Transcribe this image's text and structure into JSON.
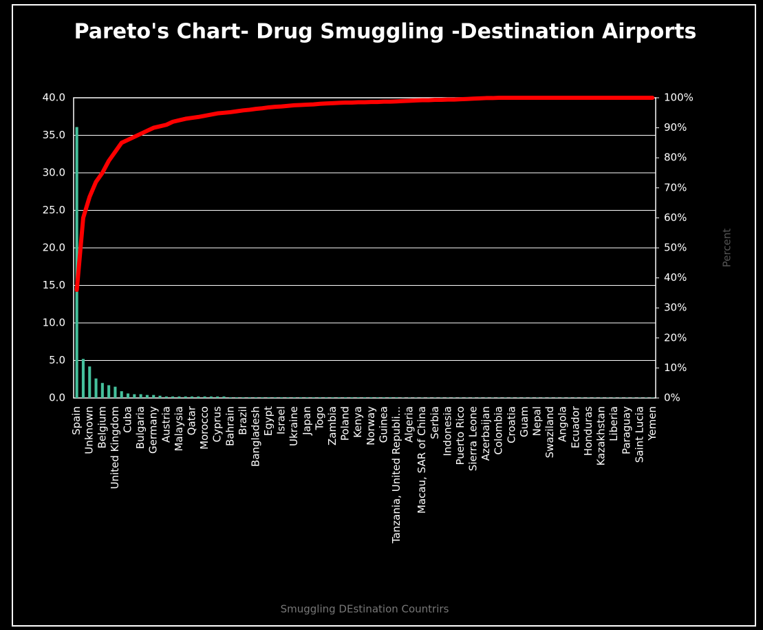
{
  "chart_data": {
    "type": "pareto",
    "title": "Pareto's Chart- Drug Smuggling -Destination Airports",
    "x_label": "Smuggling DEstination Countrirs",
    "y2_label": "Percent",
    "categories": [
      "Spain",
      null,
      "Unknown",
      null,
      "Belgium",
      null,
      "United Kingdom",
      null,
      "Cuba",
      null,
      "Bulgaria",
      null,
      "Germany",
      null,
      "Austria",
      null,
      "Malaysia",
      null,
      "Qatar",
      null,
      "Morocco",
      null,
      "Cyprus",
      null,
      "Bahrain",
      null,
      "Brazil",
      null,
      "Bangladesh",
      null,
      "Egypt",
      null,
      "Israel",
      null,
      "Ukraine",
      null,
      "Japan",
      null,
      "Togo",
      null,
      "Zambia",
      null,
      "Poland",
      null,
      "Kenya",
      null,
      "Norway",
      null,
      "Guinea",
      null,
      "Tanzania, United Republi...",
      null,
      "Algeria",
      null,
      "Macau, SAR of China",
      null,
      "Serbia",
      null,
      "Indonesia",
      null,
      "Puerto Rico",
      null,
      "Sierra Leone",
      null,
      "Azerbaijan",
      null,
      "Colombia",
      null,
      "Croatia",
      null,
      "Guam",
      null,
      "Nepal",
      null,
      "Swaziland",
      null,
      "Angola",
      null,
      "Ecuador",
      null,
      "Honduras",
      null,
      "Kazakhstan",
      null,
      "Liberia",
      null,
      "Paraguay",
      null,
      "Saint Lucia",
      null,
      "Yemen"
    ],
    "series": [
      {
        "type": "bar",
        "color": "#45c09c",
        "values": [
          36.1,
          5.2,
          4.2,
          2.6,
          2.0,
          1.7,
          1.5,
          0.9,
          0.6,
          0.5,
          0.5,
          0.4,
          0.4,
          0.3,
          0.2,
          0.2,
          0.2,
          0.2,
          0.2,
          0.2,
          0.2,
          0.2,
          0.2,
          0.2,
          0.1,
          0.1,
          0.1,
          0.1,
          0.1,
          0.1,
          0.1,
          0.1,
          0.1,
          0.1,
          0.1,
          0.1,
          0.1,
          0.1,
          0.1,
          0.1,
          0.1,
          0.1,
          0.1,
          0.1,
          0.1,
          0.1,
          0.1,
          0.1,
          0.1,
          0.1,
          0.1,
          0.05,
          0.05,
          0.05,
          0.05,
          0.05,
          0.05,
          0.05,
          0.05,
          0.05,
          0.05,
          0.05,
          0.05,
          0.05,
          0.05,
          0.05,
          0.05,
          0.05,
          0.05,
          0.05,
          0.05,
          0.05,
          0.05,
          0.05,
          0.05,
          0.05,
          0.05,
          0.05,
          0.05,
          0.05,
          0.05,
          0.05,
          0.05,
          0.05,
          0.05,
          0.05,
          0.05,
          0.05,
          0.05,
          0.05,
          0.05
        ]
      },
      {
        "type": "line",
        "axis": "y2",
        "color": "#ff0000",
        "values": [
          36,
          60,
          67,
          72,
          75,
          79,
          82,
          85,
          86,
          87,
          88,
          89,
          90,
          90.5,
          91,
          92,
          92.5,
          93,
          93.3,
          93.6,
          94,
          94.4,
          94.8,
          95,
          95.2,
          95.5,
          95.8,
          96,
          96.3,
          96.5,
          96.8,
          97,
          97.1,
          97.3,
          97.5,
          97.6,
          97.7,
          97.8,
          98,
          98.1,
          98.2,
          98.3,
          98.4,
          98.4,
          98.5,
          98.5,
          98.6,
          98.6,
          98.7,
          98.7,
          98.8,
          98.9,
          99,
          99.1,
          99.2,
          99.2,
          99.3,
          99.3,
          99.4,
          99.4,
          99.5,
          99.6,
          99.7,
          99.8,
          99.9,
          99.9,
          100,
          100,
          100,
          100,
          100,
          100,
          100,
          100,
          100,
          100,
          100,
          100,
          100,
          100,
          100,
          100,
          100,
          100,
          100,
          100,
          100,
          100,
          100,
          100,
          100
        ]
      }
    ],
    "ylim": [
      0,
      40
    ],
    "yticks": [
      {
        "value": 0,
        "label": "0.0"
      },
      {
        "value": 5,
        "label": "5.0"
      },
      {
        "value": 10,
        "label": "10.0"
      },
      {
        "value": 15,
        "label": "15.0"
      },
      {
        "value": 20,
        "label": "20.0"
      },
      {
        "value": 25,
        "label": "25.0"
      },
      {
        "value": 30,
        "label": "30.0"
      },
      {
        "value": 35,
        "label": "35.0"
      },
      {
        "value": 40,
        "label": "40.0"
      }
    ],
    "y2lim": [
      0,
      100
    ],
    "y2ticks": [
      {
        "value": 0,
        "label": "0%"
      },
      {
        "value": 10,
        "label": "10%"
      },
      {
        "value": 20,
        "label": "20%"
      },
      {
        "value": 30,
        "label": "30%"
      },
      {
        "value": 40,
        "label": "40%"
      },
      {
        "value": 50,
        "label": "50%"
      },
      {
        "value": 60,
        "label": "60%"
      },
      {
        "value": 70,
        "label": "70%"
      },
      {
        "value": 80,
        "label": "80%"
      },
      {
        "value": 90,
        "label": "90%"
      },
      {
        "value": 100,
        "label": "100%"
      }
    ],
    "grid": true
  }
}
